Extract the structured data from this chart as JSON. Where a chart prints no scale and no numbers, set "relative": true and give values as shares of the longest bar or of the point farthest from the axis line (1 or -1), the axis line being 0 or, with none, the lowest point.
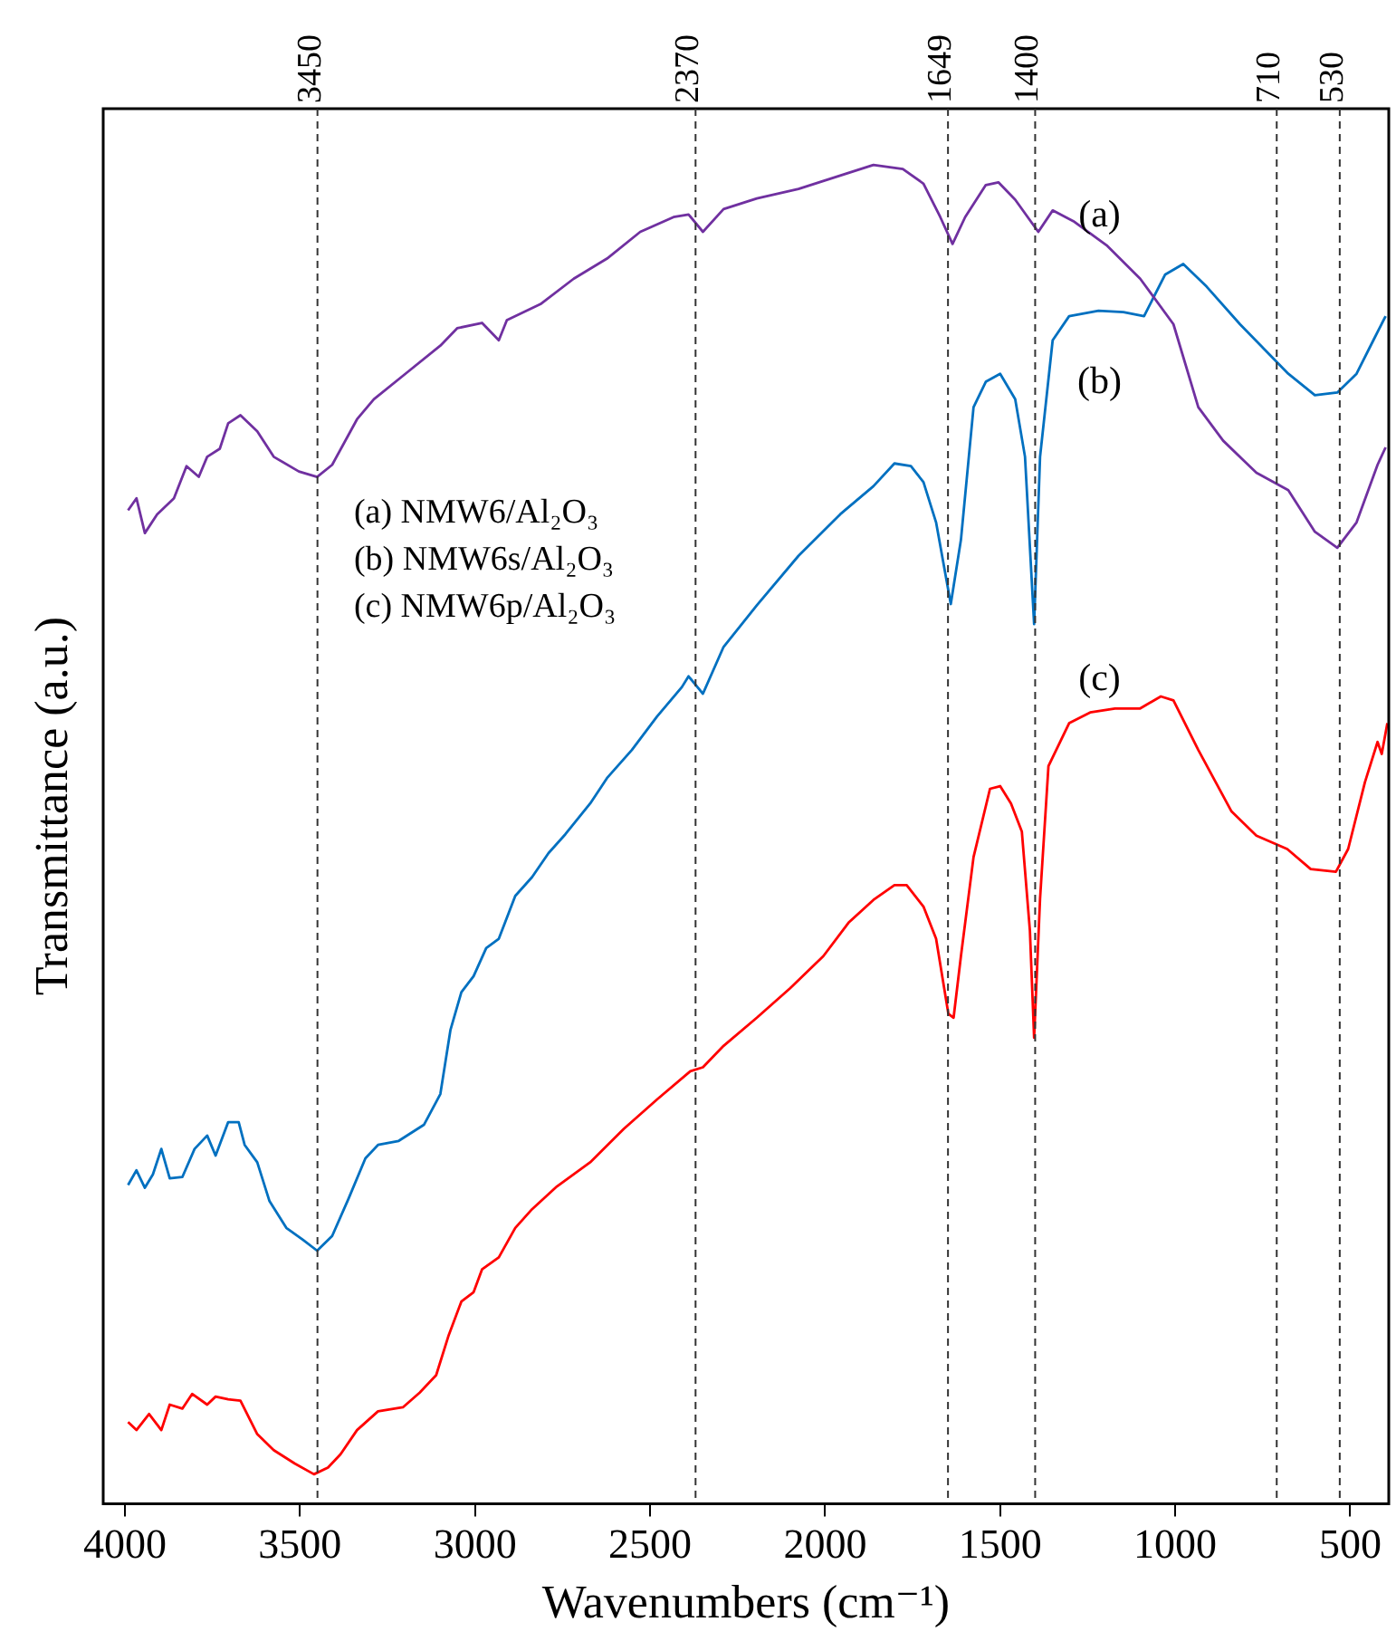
{
  "chart_data": {
    "type": "line",
    "xlabel": "Wavenumbers (cm⁻¹)",
    "ylabel": "Transmittance (a.u.)",
    "relative": true,
    "xlim": [
      4062,
      390
    ],
    "xticks": [
      4000,
      3500,
      3000,
      2500,
      2000,
      1500,
      1000,
      500
    ],
    "grid": false,
    "legend": false,
    "tick_labels": "x",
    "marker": "none",
    "line_style": "solid",
    "annotations": [
      "(a) NMW6/Al₂O₃",
      "(b) NMW6s/Al₂O₃",
      "(c) NMW6p/Al₂O₃"
    ],
    "ref_lines": [
      {
        "axis": "x",
        "value": 3450,
        "label": "3450",
        "line_style": "dashed"
      },
      {
        "axis": "x",
        "value": 2370,
        "label": "2370",
        "line_style": "dashed"
      },
      {
        "axis": "x",
        "value": 1649,
        "label": "1649",
        "line_style": "dashed"
      },
      {
        "axis": "x",
        "value": 1400,
        "label": "1400",
        "line_style": "dashed"
      },
      {
        "axis": "x",
        "value": 710,
        "label": "710",
        "line_style": "dashed"
      },
      {
        "axis": "x",
        "value": 530,
        "label": "530",
        "line_style": "dashed"
      }
    ],
    "series": [
      {
        "name": "(a)",
        "color": "#7030a0",
        "x": [
          3991,
          3967,
          3943,
          3908,
          3860,
          3824,
          3789,
          3765,
          3729,
          3705,
          3670,
          3622,
          3575,
          3503,
          3451,
          3408,
          3337,
          3289,
          3194,
          3099,
          3051,
          2980,
          2932,
          2909,
          2813,
          2718,
          2623,
          2528,
          2433,
          2390,
          2349,
          2290,
          2195,
          2076,
          1957,
          1862,
          1778,
          1719,
          1671,
          1636,
          1600,
          1541,
          1505,
          1457,
          1391,
          1350,
          1291,
          1196,
          1100,
          1005,
          934,
          863,
          768,
          677,
          601,
          537,
          482,
          422,
          399
        ],
        "values": [
          0.742,
          0.751,
          0.725,
          0.739,
          0.751,
          0.775,
          0.767,
          0.782,
          0.788,
          0.807,
          0.813,
          0.801,
          0.782,
          0.771,
          0.767,
          0.776,
          0.81,
          0.825,
          0.845,
          0.865,
          0.878,
          0.882,
          0.869,
          0.884,
          0.896,
          0.915,
          0.93,
          0.95,
          0.961,
          0.963,
          0.95,
          0.967,
          0.975,
          0.982,
          0.992,
          1,
          0.997,
          0.986,
          0.961,
          0.941,
          0.961,
          0.985,
          0.987,
          0.974,
          0.95,
          0.966,
          0.958,
          0.94,
          0.915,
          0.881,
          0.819,
          0.794,
          0.77,
          0.757,
          0.726,
          0.714,
          0.733,
          0.776,
          0.789
        ]
      },
      {
        "name": "(b)",
        "color": "#0070c0",
        "x": [
          3991,
          3967,
          3943,
          3920,
          3896,
          3872,
          3836,
          3801,
          3765,
          3741,
          3705,
          3675,
          3658,
          3622,
          3587,
          3539,
          3491,
          3451,
          3408,
          3361,
          3313,
          3277,
          3218,
          3146,
          3099,
          3070,
          3039,
          3004,
          2968,
          2932,
          2885,
          2837,
          2790,
          2742,
          2671,
          2623,
          2552,
          2480,
          2409,
          2390,
          2349,
          2290,
          2195,
          2076,
          1957,
          1862,
          1802,
          1755,
          1719,
          1683,
          1641,
          1612,
          1576,
          1541,
          1500,
          1457,
          1429,
          1403,
          1386,
          1350,
          1303,
          1219,
          1148,
          1089,
          1029,
          977,
          910,
          815,
          677,
          601,
          537,
          482,
          434,
          399
        ],
        "values": [
          0.238,
          0.249,
          0.236,
          0.246,
          0.265,
          0.243,
          0.244,
          0.265,
          0.275,
          0.26,
          0.285,
          0.285,
          0.268,
          0.255,
          0.226,
          0.206,
          0.197,
          0.189,
          0.2,
          0.228,
          0.258,
          0.268,
          0.271,
          0.283,
          0.306,
          0.354,
          0.382,
          0.394,
          0.415,
          0.422,
          0.454,
          0.468,
          0.486,
          0.5,
          0.523,
          0.542,
          0.563,
          0.588,
          0.61,
          0.618,
          0.605,
          0.64,
          0.671,
          0.708,
          0.739,
          0.76,
          0.777,
          0.775,
          0.763,
          0.733,
          0.672,
          0.72,
          0.819,
          0.838,
          0.844,
          0.825,
          0.782,
          0.657,
          0.782,
          0.869,
          0.887,
          0.891,
          0.89,
          0.887,
          0.918,
          0.926,
          0.909,
          0.881,
          0.844,
          0.828,
          0.83,
          0.844,
          0.869,
          0.887
        ]
      },
      {
        "name": "(c)",
        "color": "#ff0000",
        "x": [
          3991,
          3967,
          3931,
          3896,
          3872,
          3836,
          3808,
          3765,
          3741,
          3705,
          3670,
          3622,
          3575,
          3515,
          3460,
          3420,
          3384,
          3337,
          3277,
          3206,
          3158,
          3111,
          3075,
          3039,
          3004,
          2980,
          2932,
          2885,
          2837,
          2766,
          2671,
          2575,
          2480,
          2385,
          2349,
          2290,
          2195,
          2100,
          2005,
          1933,
          1862,
          1802,
          1767,
          1719,
          1683,
          1648,
          1633,
          1612,
          1576,
          1529,
          1500,
          1469,
          1438,
          1415,
          1403,
          1386,
          1362,
          1303,
          1243,
          1172,
          1100,
          1041,
          1005,
          934,
          839,
          768,
          680,
          613,
          541,
          506,
          458,
          422,
          410,
          394
        ],
        "values": [
          0.061,
          0.055,
          0.067,
          0.055,
          0.074,
          0.071,
          0.082,
          0.074,
          0.08,
          0.078,
          0.077,
          0.052,
          0.04,
          0.03,
          0.022,
          0.027,
          0.037,
          0.055,
          0.069,
          0.072,
          0.083,
          0.096,
          0.126,
          0.151,
          0.158,
          0.175,
          0.184,
          0.206,
          0.22,
          0.237,
          0.255,
          0.28,
          0.302,
          0.323,
          0.326,
          0.342,
          0.363,
          0.385,
          0.409,
          0.434,
          0.451,
          0.462,
          0.462,
          0.446,
          0.422,
          0.366,
          0.363,
          0.409,
          0.483,
          0.534,
          0.536,
          0.523,
          0.502,
          0.428,
          0.348,
          0.452,
          0.551,
          0.583,
          0.591,
          0.594,
          0.594,
          0.603,
          0.6,
          0.563,
          0.517,
          0.499,
          0.489,
          0.474,
          0.472,
          0.489,
          0.539,
          0.569,
          0.56,
          0.583
        ]
      }
    ]
  }
}
